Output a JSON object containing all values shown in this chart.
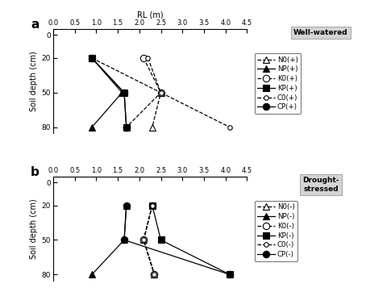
{
  "depths": [
    20,
    50,
    80
  ],
  "xlim": [
    0.0,
    4.5
  ],
  "xticks": [
    0.0,
    0.5,
    1.0,
    1.5,
    2.0,
    2.5,
    3.0,
    3.5,
    4.0,
    4.5
  ],
  "ylim_bottom": 85,
  "ylim_top": -5,
  "yticks": [
    0,
    20,
    50,
    80
  ],
  "xlabel": "RL (m)",
  "ylabel": "Soil depth (cm)",
  "panel_a": {
    "title": "Well-watered",
    "series": [
      {
        "label": "N0(+)",
        "rl": [
          0.9,
          2.5,
          2.3
        ],
        "ls": "--",
        "marker": "^",
        "mfc": "white",
        "ms": 6
      },
      {
        "label": "NP(+)",
        "rl": [
          0.9,
          1.6,
          0.9
        ],
        "ls": "-",
        "marker": "^",
        "mfc": "black",
        "ms": 6
      },
      {
        "label": "K0(+)",
        "rl": [
          2.1,
          2.5,
          1.7
        ],
        "ls": "--",
        "marker": "o",
        "mfc": "white",
        "ms": 6
      },
      {
        "label": "KP(+)",
        "rl": [
          0.9,
          1.65,
          1.7
        ],
        "ls": "-",
        "marker": "s",
        "mfc": "black",
        "ms": 6
      },
      {
        "label": "C0(+)",
        "rl": [
          2.2,
          2.5,
          4.1
        ],
        "ls": "--",
        "marker": "o",
        "mfc": "white",
        "ms": 4
      },
      {
        "label": "CP(+)",
        "rl": [
          0.9,
          1.65,
          1.7
        ],
        "ls": "-",
        "marker": "o",
        "mfc": "black",
        "ms": 6
      }
    ]
  },
  "panel_b": {
    "title": "Drought-\nstressed",
    "series": [
      {
        "label": "N0(-)",
        "rl": [
          2.3,
          2.1,
          2.35
        ],
        "ls": "--",
        "marker": "^",
        "mfc": "white",
        "ms": 6
      },
      {
        "label": "NP(-)",
        "rl": [
          1.7,
          1.65,
          0.9
        ],
        "ls": "-",
        "marker": "^",
        "mfc": "black",
        "ms": 6
      },
      {
        "label": "K0(-)",
        "rl": [
          2.3,
          2.1,
          2.35
        ],
        "ls": "--",
        "marker": "o",
        "mfc": "white",
        "ms": 6
      },
      {
        "label": "KP(-)",
        "rl": [
          2.3,
          2.5,
          4.1
        ],
        "ls": "-",
        "marker": "s",
        "mfc": "black",
        "ms": 6
      },
      {
        "label": "C0(-)",
        "rl": [
          2.3,
          2.1,
          2.35
        ],
        "ls": "--",
        "marker": "o",
        "mfc": "white",
        "ms": 4
      },
      {
        "label": "CP(-)",
        "rl": [
          1.7,
          1.65,
          4.1
        ],
        "ls": "-",
        "marker": "o",
        "mfc": "black",
        "ms": 6
      }
    ]
  }
}
